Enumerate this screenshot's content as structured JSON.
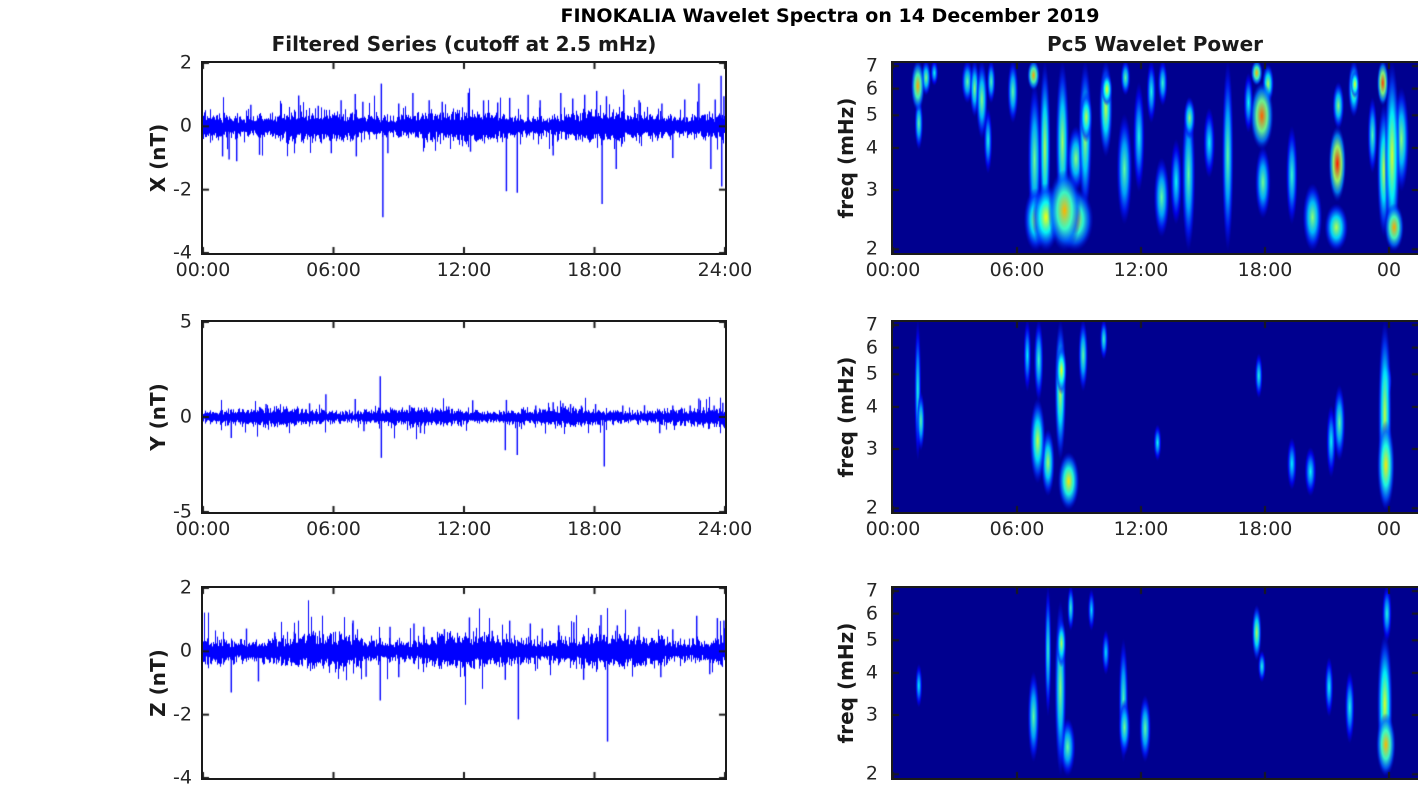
{
  "figure": {
    "title": "FINOKALIA Wavelet Spectra on 14 December 2019",
    "left_title": "Filtered Series (cutoff at 2.5 mHz)",
    "right_title": "Pc5 Wavelet Power",
    "colors": {
      "line": "#0000FF",
      "axis": "#1A1A1A",
      "tick_text": "#262626",
      "spectro_bg": "#00008F",
      "background": "#FFFFFF"
    }
  },
  "chart_data": {
    "type": "multi-panel",
    "panels_layout": "3 rows x 2 columns; left column filtered magnetometer time series, right column wavelet power spectrograms",
    "time_axis": {
      "xtick_labels_left": [
        "00:00",
        "06:00",
        "12:00",
        "18:00",
        "24:00"
      ],
      "xtick_labels_right": [
        "00:00",
        "06:00",
        "12:00",
        "18:00",
        "00"
      ],
      "xtick_hours": [
        0,
        6,
        12,
        18,
        24
      ],
      "note_bottom_row": "x tick labels of bottom row are cut off by the screenshot edge"
    },
    "timeseries": [
      {
        "id": "x",
        "ylabel": "X (nT)",
        "ylim": [
          -4,
          2
        ],
        "yticks": [
          "2",
          "0",
          "-2",
          "-4"
        ],
        "noise_amp": 0.33,
        "seed": 3,
        "show_xticklabels": true,
        "spikes": [
          [
            0.9,
            -0.95
          ],
          [
            1.2,
            -1.05
          ],
          [
            1.55,
            -1.1
          ],
          [
            2.2,
            0.68
          ],
          [
            2.6,
            -0.9
          ],
          [
            3.6,
            0.72
          ],
          [
            4.4,
            0.97
          ],
          [
            5.3,
            0.65
          ],
          [
            5.9,
            -0.85
          ],
          [
            6.35,
            0.82
          ],
          [
            7.0,
            1.02
          ],
          [
            7.05,
            -0.95
          ],
          [
            7.35,
            0.78
          ],
          [
            8.2,
            1.35
          ],
          [
            8.27,
            -2.87
          ],
          [
            8.5,
            -0.85
          ],
          [
            9.0,
            0.72
          ],
          [
            9.65,
            1.05
          ],
          [
            10.4,
            0.82
          ],
          [
            11.0,
            0.78
          ],
          [
            12.2,
            1.06
          ],
          [
            12.3,
            -0.8
          ],
          [
            12.9,
            0.82
          ],
          [
            13.55,
            0.75
          ],
          [
            13.95,
            -2.05
          ],
          [
            14.1,
            0.9
          ],
          [
            14.45,
            -2.1
          ],
          [
            14.95,
            1.0
          ],
          [
            15.5,
            0.82
          ],
          [
            16.1,
            -0.92
          ],
          [
            16.45,
            1.05
          ],
          [
            17.0,
            0.88
          ],
          [
            17.55,
            1.0
          ],
          [
            18.1,
            1.12
          ],
          [
            18.35,
            -2.45
          ],
          [
            18.55,
            0.95
          ],
          [
            19.0,
            -1.35
          ],
          [
            19.35,
            1.0
          ],
          [
            20.05,
            0.82
          ],
          [
            21.1,
            0.72
          ],
          [
            21.6,
            -1.0
          ],
          [
            22.15,
            0.85
          ],
          [
            22.8,
            1.35
          ],
          [
            23.35,
            -1.35
          ],
          [
            23.55,
            0.85
          ],
          [
            23.82,
            1.6
          ],
          [
            23.85,
            -1.9
          ],
          [
            23.95,
            0.95
          ]
        ]
      },
      {
        "id": "y",
        "ylabel": "Y (nT)",
        "ylim": [
          -5,
          5
        ],
        "yticks": [
          "5",
          "0",
          "-5"
        ],
        "noise_amp": 0.33,
        "seed": 5,
        "show_xticklabels": true,
        "spikes": [
          [
            1.3,
            -1.1
          ],
          [
            2.9,
            0.68
          ],
          [
            4.9,
            0.72
          ],
          [
            5.65,
            1.2
          ],
          [
            7.0,
            0.95
          ],
          [
            7.4,
            -0.75
          ],
          [
            8.15,
            2.15
          ],
          [
            8.2,
            -2.15
          ],
          [
            9.5,
            0.62
          ],
          [
            10.0,
            -0.85
          ],
          [
            11.3,
            0.55
          ],
          [
            12.4,
            0.88
          ],
          [
            13.9,
            -1.75
          ],
          [
            13.95,
            0.9
          ],
          [
            14.45,
            -2.0
          ],
          [
            15.3,
            0.6
          ],
          [
            16.1,
            0.78
          ],
          [
            16.55,
            0.72
          ],
          [
            16.9,
            0.68
          ],
          [
            17.4,
            0.6
          ],
          [
            18.05,
            0.68
          ],
          [
            18.45,
            -2.6
          ],
          [
            19.3,
            0.6
          ],
          [
            20.3,
            0.62
          ],
          [
            21.0,
            -0.85
          ],
          [
            21.6,
            0.6
          ],
          [
            22.4,
            0.6
          ],
          [
            22.8,
            0.97
          ],
          [
            23.5,
            0.6
          ],
          [
            23.9,
            0.75
          ]
        ]
      },
      {
        "id": "z",
        "ylabel": "Z (nT)",
        "ylim": [
          -4,
          2
        ],
        "yticks": [
          "2",
          "0",
          "-2",
          "-4"
        ],
        "noise_amp": 0.36,
        "seed": 9,
        "show_xticklabels": false,
        "spikes": [
          [
            1.3,
            -1.3
          ],
          [
            2.0,
            0.72
          ],
          [
            2.55,
            -0.95
          ],
          [
            3.3,
            0.6
          ],
          [
            4.2,
            0.62
          ],
          [
            5.0,
            0.6
          ],
          [
            6.9,
            0.97
          ],
          [
            7.5,
            -0.8
          ],
          [
            8.15,
            -1.55
          ],
          [
            8.6,
            0.78
          ],
          [
            9.0,
            -0.82
          ],
          [
            9.7,
            0.88
          ],
          [
            10.15,
            0.78
          ],
          [
            11.1,
            0.7
          ],
          [
            12.25,
            1.07
          ],
          [
            13.3,
            0.65
          ],
          [
            13.9,
            -0.9
          ],
          [
            14.1,
            0.97
          ],
          [
            14.5,
            -2.15
          ],
          [
            15.05,
            0.88
          ],
          [
            15.6,
            0.72
          ],
          [
            16.35,
            0.82
          ],
          [
            17.05,
            0.92
          ],
          [
            17.5,
            -0.9
          ],
          [
            18.3,
            1.15
          ],
          [
            18.6,
            -2.85
          ],
          [
            19.05,
            0.82
          ],
          [
            20.05,
            0.78
          ],
          [
            21.05,
            -0.82
          ],
          [
            21.6,
            0.7
          ],
          [
            22.7,
            1.12
          ],
          [
            23.3,
            -0.72
          ],
          [
            23.65,
            1.05
          ],
          [
            23.95,
            0.97
          ]
        ]
      }
    ],
    "spectrograms": [
      {
        "id": "x",
        "ylabel": "freq (mHz)",
        "yticks": [
          7,
          6,
          5,
          4,
          3,
          2
        ],
        "freq_range_mhz": [
          1.95,
          7.15
        ],
        "scale": "log",
        "show_xticklabels": true,
        "blobs": [
          [
            1.2,
            5.2,
            7.2,
            0.35,
            0.8
          ],
          [
            1.25,
            4.0,
            5.6,
            0.22,
            0.5
          ],
          [
            1.6,
            5.8,
            7.2,
            0.25,
            0.55
          ],
          [
            2.0,
            6.2,
            7.2,
            0.2,
            0.4
          ],
          [
            3.6,
            5.5,
            7.2,
            0.3,
            0.5
          ],
          [
            3.95,
            5.0,
            7.2,
            0.25,
            0.55
          ],
          [
            4.3,
            4.3,
            7.2,
            0.3,
            0.55
          ],
          [
            4.6,
            3.4,
            5.2,
            0.22,
            0.42
          ],
          [
            4.75,
            5.5,
            7.2,
            0.22,
            0.48
          ],
          [
            5.8,
            4.8,
            7.2,
            0.28,
            0.5
          ],
          [
            6.8,
            6.0,
            7.2,
            0.32,
            0.8
          ],
          [
            6.85,
            2.2,
            6.2,
            0.35,
            0.52
          ],
          [
            6.9,
            2.0,
            3.0,
            0.6,
            0.6
          ],
          [
            7.35,
            2.2,
            7.2,
            0.3,
            0.6
          ],
          [
            7.4,
            2.0,
            3.1,
            0.7,
            0.68
          ],
          [
            8.2,
            2.4,
            7.2,
            0.35,
            0.58
          ],
          [
            8.3,
            2.0,
            3.4,
            0.85,
            0.78
          ],
          [
            8.8,
            2.0,
            3.0,
            0.95,
            0.75
          ],
          [
            8.85,
            3.0,
            4.6,
            0.45,
            0.55
          ],
          [
            9.3,
            2.6,
            7.2,
            0.35,
            0.58
          ],
          [
            9.35,
            4.2,
            5.8,
            0.32,
            0.62
          ],
          [
            10.3,
            3.8,
            7.2,
            0.35,
            0.62
          ],
          [
            10.35,
            5.4,
            6.6,
            0.28,
            0.68
          ],
          [
            11.2,
            2.4,
            5.0,
            0.4,
            0.5
          ],
          [
            11.25,
            5.8,
            7.2,
            0.25,
            0.5
          ],
          [
            11.9,
            3.0,
            6.2,
            0.3,
            0.42
          ],
          [
            12.5,
            4.8,
            7.2,
            0.25,
            0.42
          ],
          [
            13.0,
            2.2,
            3.7,
            0.4,
            0.5
          ],
          [
            13.05,
            5.4,
            7.2,
            0.25,
            0.45
          ],
          [
            13.7,
            2.4,
            4.2,
            0.3,
            0.4
          ],
          [
            14.3,
            2.0,
            5.6,
            0.35,
            0.5
          ],
          [
            14.35,
            4.3,
            5.6,
            0.3,
            0.55
          ],
          [
            15.3,
            3.3,
            5.2,
            0.3,
            0.4
          ],
          [
            16.2,
            2.0,
            7.2,
            0.3,
            0.5
          ],
          [
            17.2,
            4.5,
            6.6,
            0.25,
            0.4
          ],
          [
            17.6,
            6.2,
            7.2,
            0.3,
            0.78
          ],
          [
            17.85,
            4.0,
            6.2,
            0.6,
            0.88
          ],
          [
            17.9,
            2.5,
            4.0,
            0.4,
            0.52
          ],
          [
            18.15,
            5.5,
            7.0,
            0.3,
            0.6
          ],
          [
            19.3,
            2.4,
            4.6,
            0.3,
            0.45
          ],
          [
            20.3,
            2.0,
            3.1,
            0.5,
            0.55
          ],
          [
            21.45,
            2.0,
            2.7,
            0.6,
            0.6
          ],
          [
            21.5,
            2.8,
            4.6,
            0.45,
            0.97
          ],
          [
            21.55,
            4.6,
            6.2,
            0.3,
            0.55
          ],
          [
            22.3,
            5.0,
            7.2,
            0.3,
            0.62
          ],
          [
            22.35,
            5.7,
            6.7,
            0.22,
            0.68
          ],
          [
            23.2,
            3.4,
            5.6,
            0.25,
            0.48
          ],
          [
            23.7,
            5.4,
            7.2,
            0.3,
            0.92
          ],
          [
            23.75,
            2.2,
            5.4,
            0.35,
            0.62
          ],
          [
            24.15,
            2.0,
            7.2,
            0.4,
            0.65
          ],
          [
            24.25,
            2.0,
            2.7,
            0.5,
            0.8
          ],
          [
            24.6,
            3.0,
            6.0,
            0.4,
            0.55
          ]
        ]
      },
      {
        "id": "y",
        "ylabel": "freq (mHz)",
        "yticks": [
          7,
          6,
          5,
          4,
          3,
          2
        ],
        "freq_range_mhz": [
          1.95,
          7.15
        ],
        "scale": "log",
        "show_xticklabels": true,
        "blobs": [
          [
            1.2,
            2.8,
            7.2,
            0.18,
            0.42
          ],
          [
            1.35,
            3.0,
            4.4,
            0.2,
            0.5
          ],
          [
            6.5,
            4.5,
            7.2,
            0.2,
            0.38
          ],
          [
            7.0,
            2.4,
            4.2,
            0.4,
            0.62
          ],
          [
            7.05,
            4.2,
            7.2,
            0.25,
            0.45
          ],
          [
            7.5,
            2.2,
            3.4,
            0.35,
            0.58
          ],
          [
            8.1,
            2.8,
            7.2,
            0.3,
            0.62
          ],
          [
            8.15,
            4.4,
            6.0,
            0.28,
            0.68
          ],
          [
            8.5,
            2.0,
            2.9,
            0.55,
            0.72
          ],
          [
            9.2,
            4.5,
            7.2,
            0.25,
            0.5
          ],
          [
            10.2,
            5.6,
            7.2,
            0.2,
            0.45
          ],
          [
            12.8,
            2.8,
            3.5,
            0.2,
            0.4
          ],
          [
            17.7,
            4.3,
            5.7,
            0.2,
            0.42
          ],
          [
            19.3,
            2.3,
            3.2,
            0.25,
            0.38
          ],
          [
            20.2,
            2.2,
            3.0,
            0.3,
            0.4
          ],
          [
            21.2,
            2.5,
            4.0,
            0.25,
            0.4
          ],
          [
            21.6,
            2.8,
            4.6,
            0.3,
            0.5
          ],
          [
            23.8,
            2.0,
            7.2,
            0.35,
            0.62
          ],
          [
            23.85,
            2.0,
            3.6,
            0.45,
            0.72
          ],
          [
            23.9,
            4.3,
            5.3,
            0.25,
            0.55
          ]
        ]
      },
      {
        "id": "z",
        "ylabel": "freq (mHz)",
        "yticks": [
          7,
          6,
          5,
          4,
          3,
          2
        ],
        "freq_range_mhz": [
          1.95,
          7.15
        ],
        "scale": "log",
        "show_xticklabels": false,
        "blobs": [
          [
            1.25,
            3.2,
            4.2,
            0.18,
            0.38
          ],
          [
            6.8,
            2.2,
            4.0,
            0.3,
            0.5
          ],
          [
            7.5,
            3.0,
            7.2,
            0.18,
            0.45
          ],
          [
            8.1,
            2.0,
            6.5,
            0.3,
            0.55
          ],
          [
            8.15,
            4.2,
            5.7,
            0.25,
            0.6
          ],
          [
            8.45,
            2.0,
            2.9,
            0.4,
            0.5
          ],
          [
            8.6,
            5.4,
            7.2,
            0.18,
            0.45
          ],
          [
            9.6,
            5.4,
            7.0,
            0.18,
            0.36
          ],
          [
            10.3,
            4.0,
            5.3,
            0.2,
            0.36
          ],
          [
            11.15,
            2.2,
            5.0,
            0.25,
            0.48
          ],
          [
            11.2,
            2.3,
            3.3,
            0.3,
            0.52
          ],
          [
            12.2,
            2.2,
            3.4,
            0.3,
            0.5
          ],
          [
            17.6,
            4.4,
            6.3,
            0.25,
            0.6
          ],
          [
            17.85,
            3.8,
            4.6,
            0.2,
            0.42
          ],
          [
            21.1,
            3.0,
            4.4,
            0.22,
            0.4
          ],
          [
            22.1,
            2.5,
            4.0,
            0.25,
            0.42
          ],
          [
            23.8,
            2.0,
            5.2,
            0.4,
            0.65
          ],
          [
            23.85,
            2.0,
            3.0,
            0.5,
            0.78
          ],
          [
            23.9,
            5.0,
            7.2,
            0.25,
            0.42
          ]
        ]
      }
    ]
  }
}
